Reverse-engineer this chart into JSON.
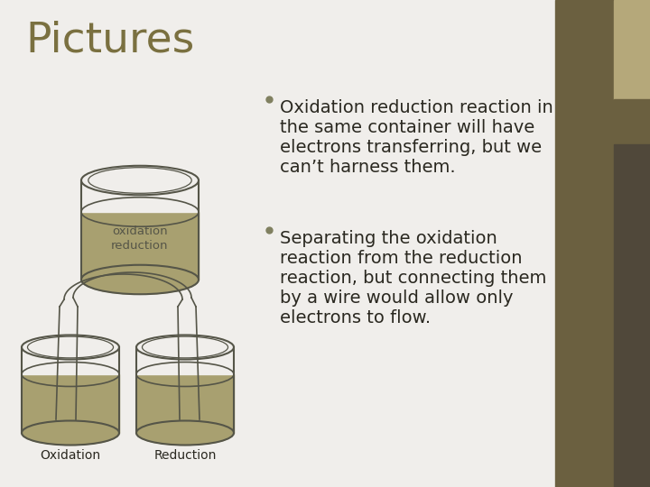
{
  "title": "Pictures",
  "title_color": "#7a7040",
  "title_fontsize": 34,
  "bg_color": "#f0eeeb",
  "sidebar_color1": "#6b6040",
  "sidebar_color2": "#b5a87a",
  "sidebar_color3": "#6b6040",
  "liquid_color": "#a8a070",
  "liquid_color_light": "#c8c090",
  "edge_color": "#555548",
  "label_oxidation": "oxidation",
  "label_reduction": "reduction",
  "label_Oxidation": "Oxidation",
  "label_Reduction": "Reduction",
  "text_color": "#2a2820",
  "bullet_color": "#808060",
  "bullet1": "Oxidation reduction reaction in\nthe same container will have\nelectrons transferring, but we\ncan’t harness them.",
  "bullet2": "Separating the oxidation\nreaction from the reduction\nreaction, but connecting them\nby a wire would allow only\nelectrons to flow.",
  "text_fontsize": 14
}
